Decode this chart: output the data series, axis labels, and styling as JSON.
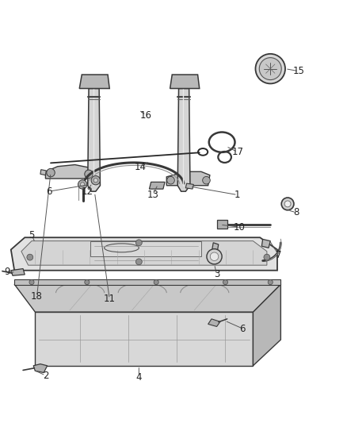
{
  "background_color": "#ffffff",
  "line_color": "#383838",
  "label_color": "#222222",
  "label_fontsize": 8.5,
  "fig_width": 4.38,
  "fig_height": 5.33,
  "dpi": 100
}
